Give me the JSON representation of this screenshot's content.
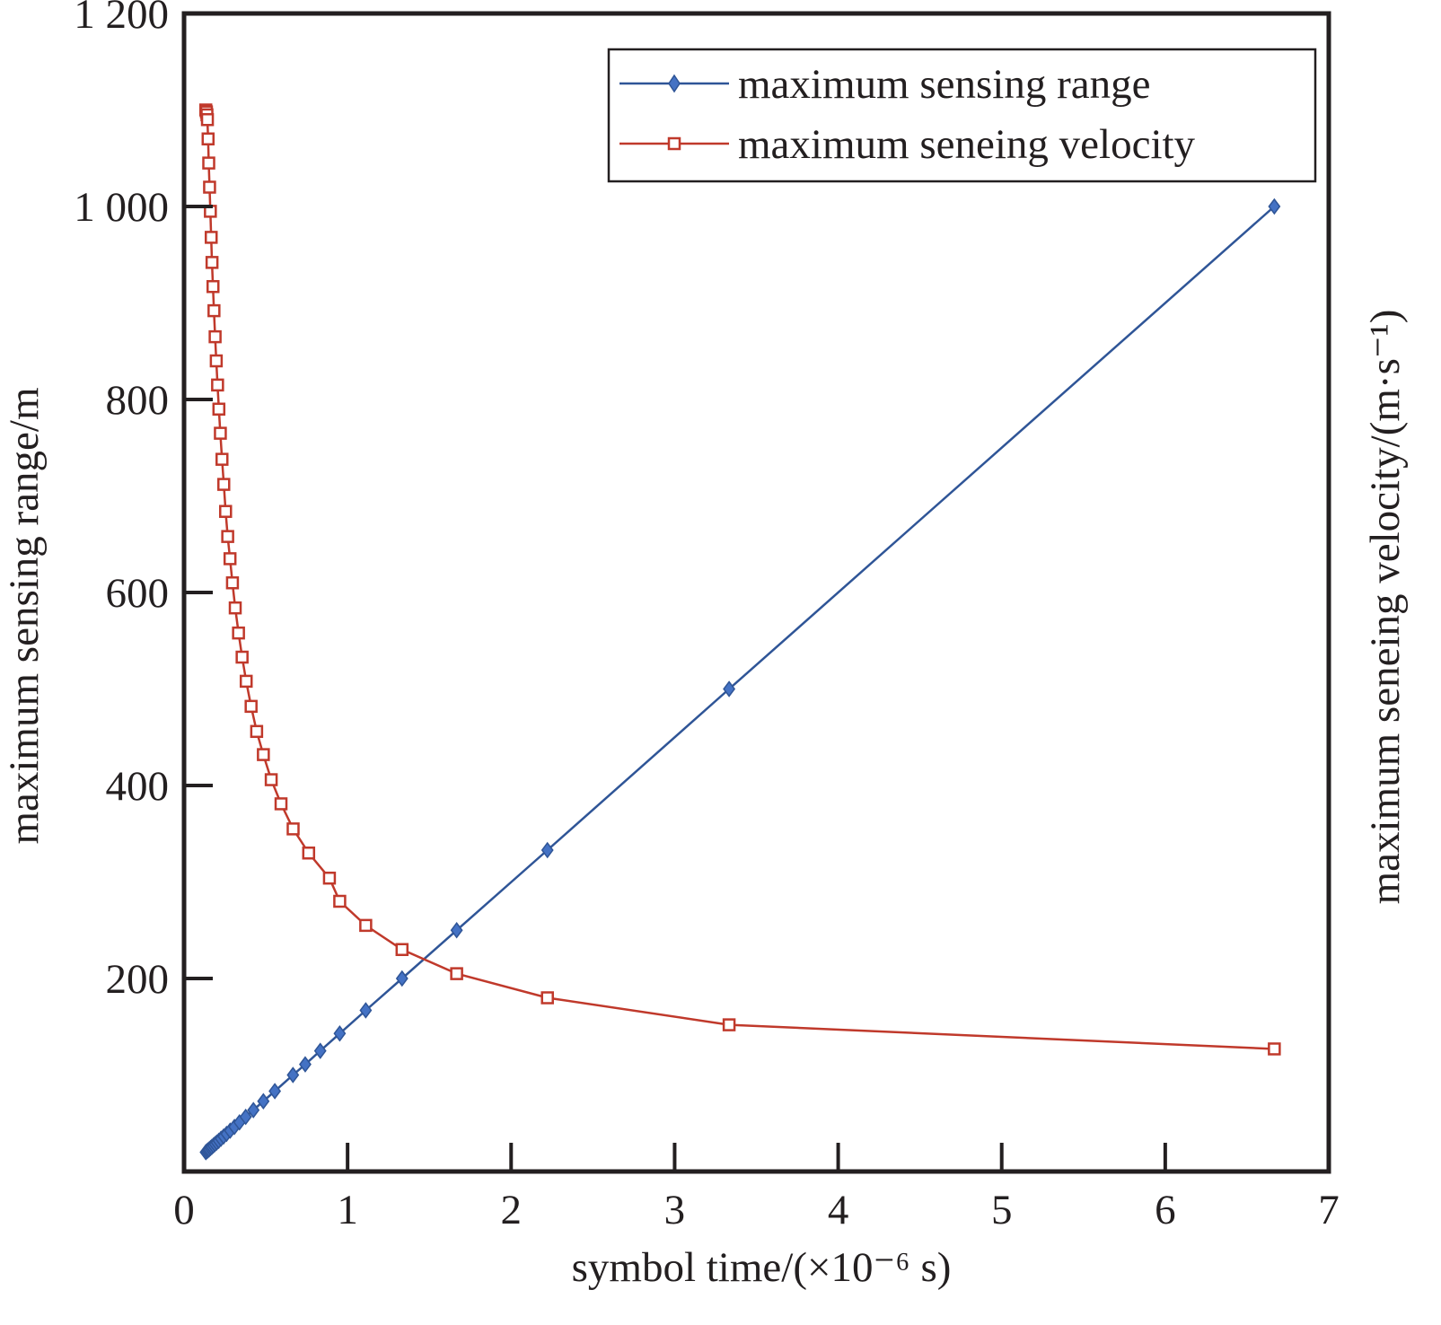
{
  "chart_data": {
    "type": "line",
    "title": "",
    "xlabel": "symbol time/(×10⁻⁶ s)",
    "ylabel": "maximum sensing range/m",
    "ylabel_right": "maximum seneing velocity/(m·s⁻¹)",
    "xlim": [
      0,
      7
    ],
    "ylim": [
      0,
      1200
    ],
    "x_ticks": [
      "0",
      "1",
      "2",
      "3",
      "4",
      "5",
      "6",
      "7"
    ],
    "y_ticks": [
      "",
      "200",
      "400",
      "600",
      "800",
      "1 000",
      "1 200"
    ],
    "grid": false,
    "legend_position": "top-right",
    "series": [
      {
        "name": "maximum sensing range",
        "color": "#2f5597",
        "marker": "diamond",
        "x": [
          0.133,
          0.14,
          0.147,
          0.154,
          0.162,
          0.17,
          0.179,
          0.189,
          0.2,
          0.212,
          0.226,
          0.242,
          0.26,
          0.282,
          0.308,
          0.339,
          0.377,
          0.424,
          0.485,
          0.555,
          0.666,
          0.741,
          0.833,
          0.952,
          1.111,
          1.333,
          1.667,
          2.222,
          3.333,
          6.667
        ],
        "y": [
          20,
          21,
          22,
          23,
          24.3,
          25.5,
          26.9,
          28.4,
          30,
          31.8,
          33.9,
          36.3,
          39,
          42.3,
          46.2,
          50.9,
          56.6,
          63.6,
          72.8,
          83.3,
          100,
          111,
          125,
          143,
          167,
          200,
          250,
          333,
          500,
          1000
        ]
      },
      {
        "name": "maximum seneing velocity",
        "color": "#c0392b",
        "marker": "square",
        "x": [
          0.133,
          0.137,
          0.14,
          0.143,
          0.147,
          0.151,
          0.156,
          0.161,
          0.166,
          0.171,
          0.177,
          0.183,
          0.19,
          0.197,
          0.205,
          0.213,
          0.222,
          0.232,
          0.243,
          0.254,
          0.267,
          0.281,
          0.296,
          0.313,
          0.333,
          0.355,
          0.38,
          0.41,
          0.444,
          0.485,
          0.533,
          0.593,
          0.667,
          0.762,
          0.889,
          0.952,
          1.111,
          1.333,
          1.667,
          2.222,
          3.333,
          6.667
        ],
        "y": [
          1100,
          1098,
          1095,
          1090,
          1070,
          1045,
          1020,
          995,
          968,
          942,
          917,
          892,
          865,
          840,
          815,
          790,
          765,
          738,
          712,
          684,
          658,
          635,
          610,
          584,
          558,
          533,
          508,
          482,
          456,
          432,
          406,
          381,
          355,
          330,
          304,
          280,
          255,
          230,
          205,
          180,
          152,
          127
        ]
      }
    ]
  }
}
